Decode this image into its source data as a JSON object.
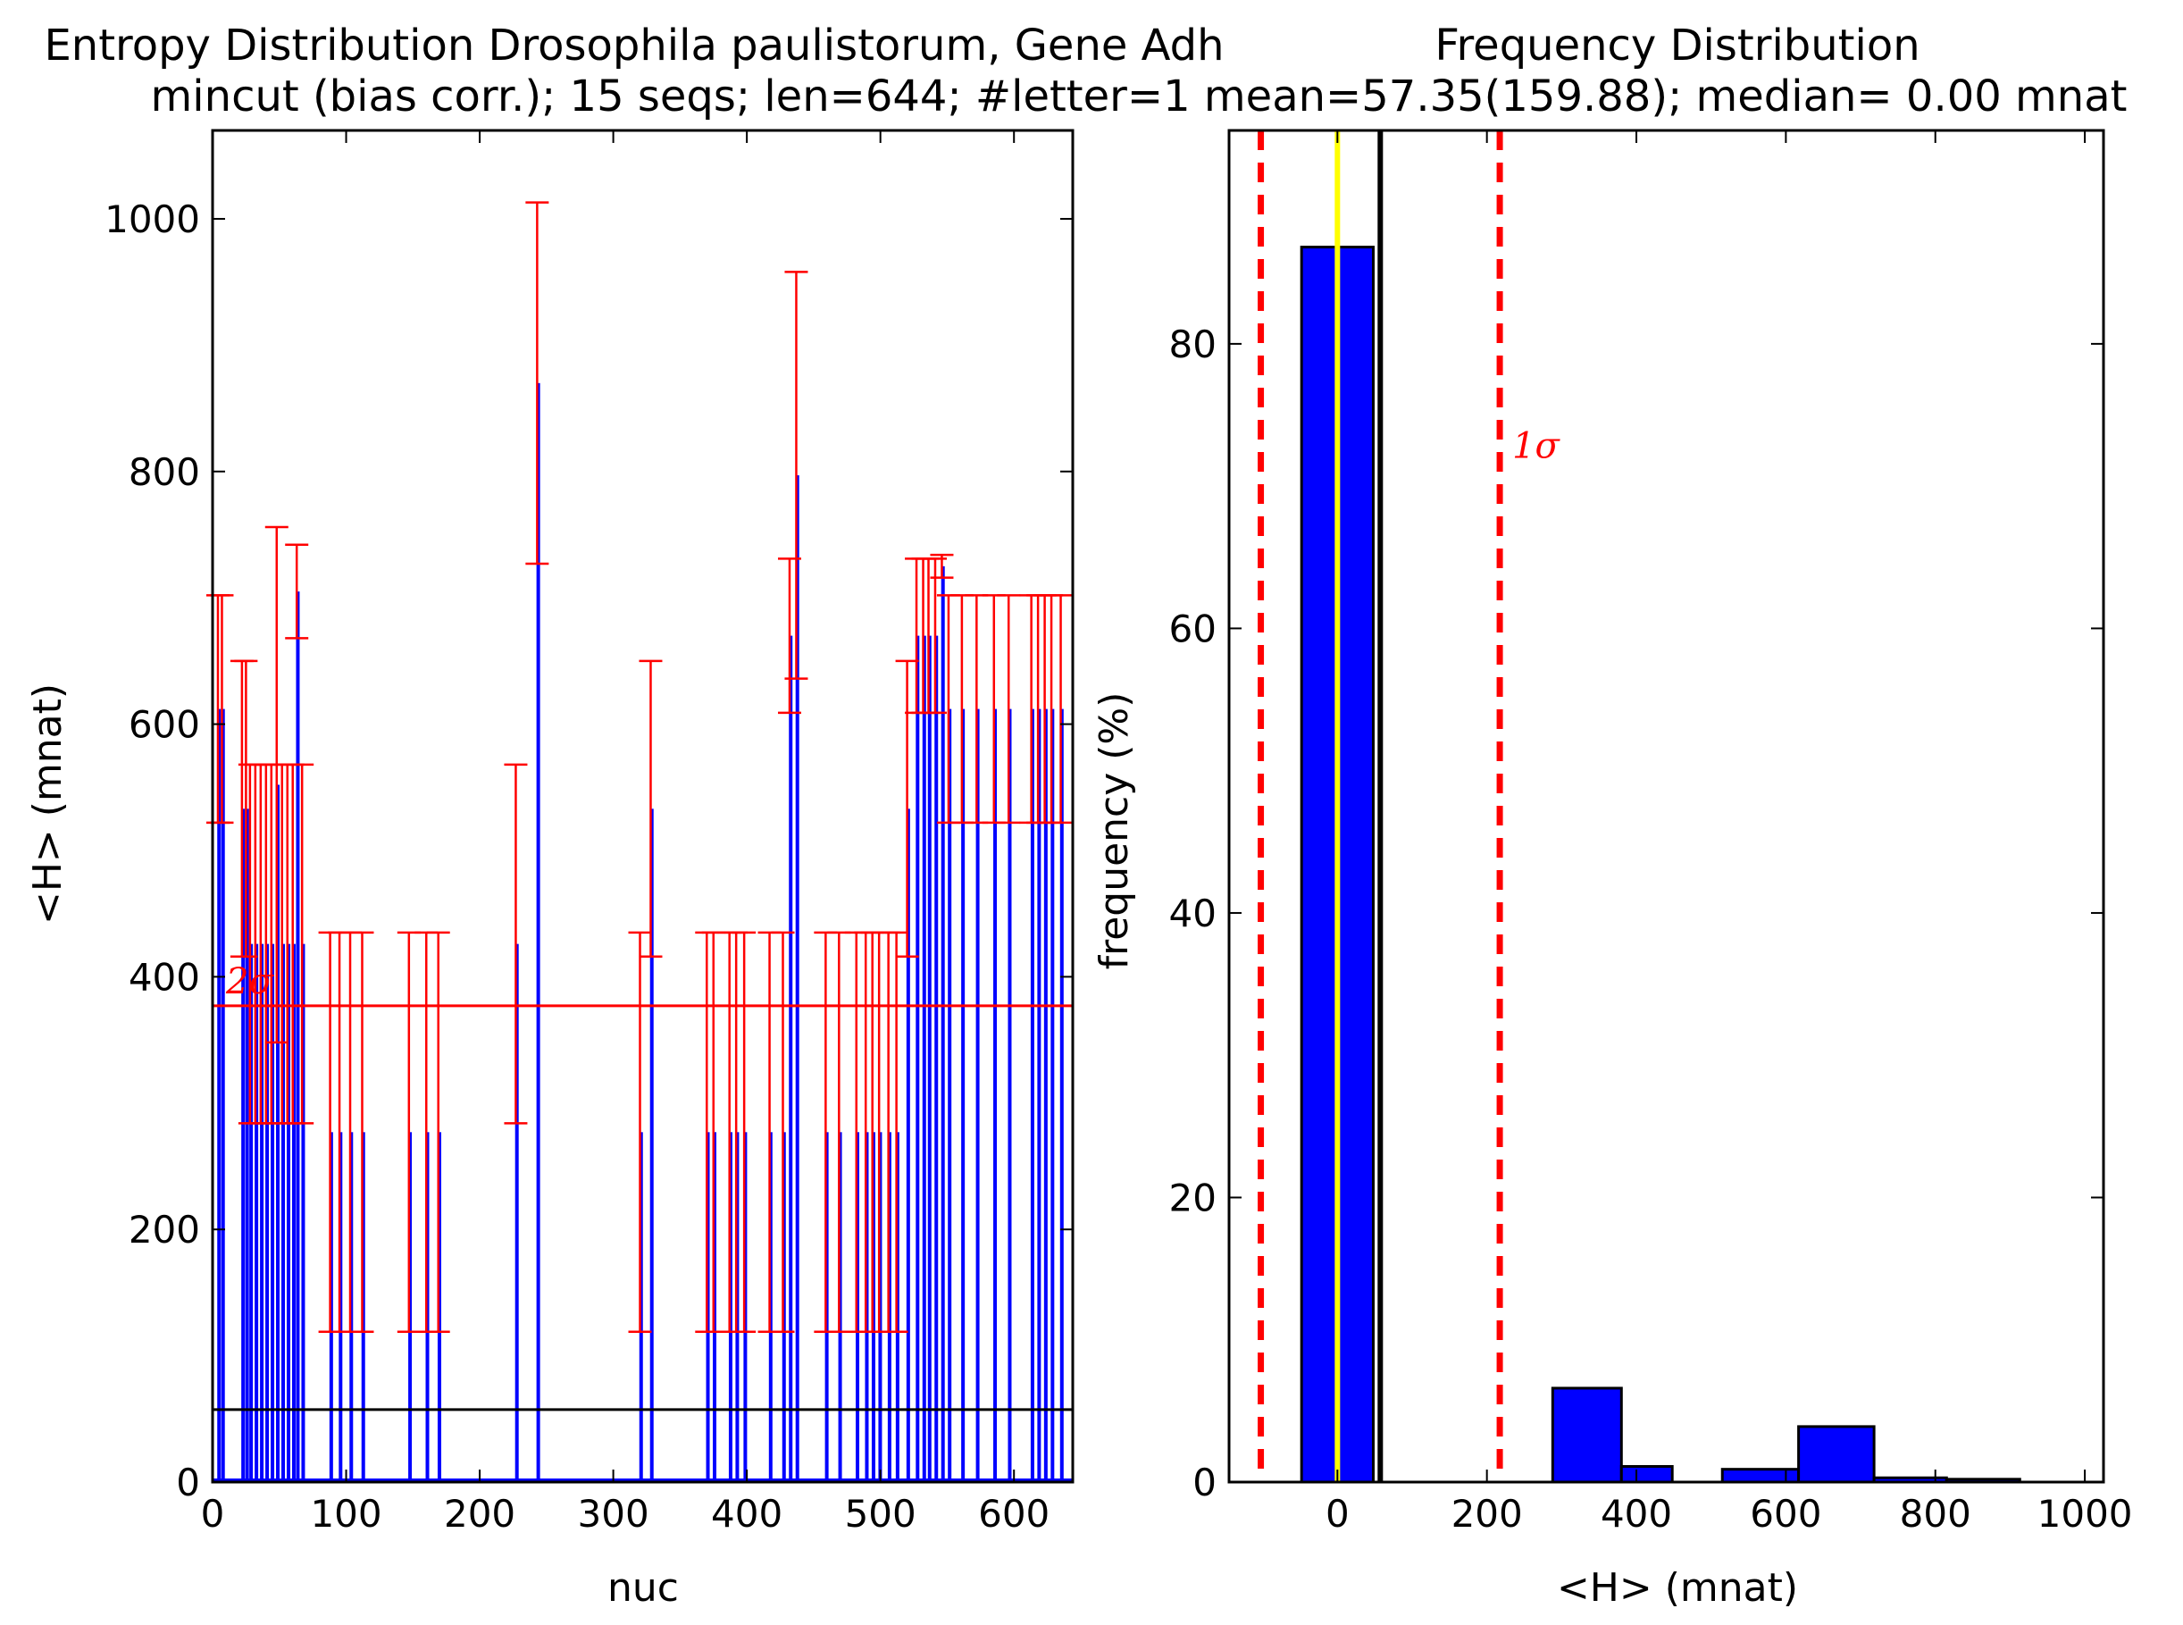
{
  "chart_data": [
    {
      "type": "bar",
      "title": "Entropy Distribution Drosophila paulistorum, Gene Adh",
      "subtitle": "mincut (bias corr.); 15 seqs; len=644; #letter=1 mean=57.35(159.88); median= 0.00 mnat",
      "xlabel": "nuc",
      "ylabel": "<H> (mnat)",
      "xlim": [
        0,
        644
      ],
      "ylim": [
        0,
        1070
      ],
      "xticks": [
        "0",
        "100",
        "200",
        "300",
        "400",
        "500",
        "600"
      ],
      "yticks": [
        "0",
        "200",
        "400",
        "600",
        "800",
        "1000"
      ],
      "mean_line": 57.35,
      "sigma_line": 377,
      "sigma_label": "2σ",
      "colors": {
        "bars": "#0000ff",
        "errorbars": "#ff0000",
        "mean": "#000000",
        "sigma": "#ff0000"
      },
      "series": [
        {
          "x": [
            4,
            7,
            22,
            25,
            28,
            32,
            36,
            40,
            44,
            48,
            52,
            56,
            60,
            63,
            67,
            88,
            95,
            103,
            112,
            147,
            160,
            169,
            227,
            243,
            320,
            328,
            370,
            375,
            387,
            392,
            398,
            417,
            427,
            432,
            437,
            459,
            469,
            482,
            489,
            494,
            499,
            506,
            512,
            520,
            527,
            532,
            536,
            541,
            546,
            551,
            561,
            572,
            585,
            596,
            613,
            618,
            623,
            628,
            635
          ],
          "values": [
            612,
            612,
            533,
            533,
            426,
            426,
            426,
            426,
            426,
            552,
            426,
            426,
            426,
            705,
            426,
            277,
            277,
            277,
            277,
            277,
            277,
            277,
            426,
            870,
            277,
            533,
            277,
            277,
            277,
            277,
            277,
            277,
            277,
            670,
            797,
            277,
            277,
            277,
            277,
            277,
            277,
            277,
            277,
            533,
            670,
            670,
            670,
            670,
            725,
            612,
            612,
            612,
            612,
            612,
            612,
            612,
            612,
            612,
            612
          ],
          "errors": [
            90,
            90,
            117,
            117,
            142,
            142,
            142,
            142,
            142,
            204,
            142,
            142,
            142,
            37,
            142,
            158,
            158,
            158,
            158,
            158,
            158,
            158,
            142,
            143,
            158,
            117,
            158,
            158,
            158,
            158,
            158,
            158,
            158,
            61,
            161,
            158,
            158,
            158,
            158,
            158,
            158,
            158,
            158,
            117,
            61,
            61,
            61,
            61,
            9,
            90,
            90,
            90,
            90,
            90,
            90,
            90,
            90,
            90,
            90
          ]
        }
      ]
    },
    {
      "type": "bar",
      "title": "Frequency Distribution",
      "xlabel": "<H> (mnat)",
      "ylabel": "frequency (%)",
      "xlim": [
        -145,
        1025
      ],
      "ylim": [
        0,
        95
      ],
      "xticks": [
        "0",
        "200",
        "400",
        "600",
        "800",
        "1000"
      ],
      "yticks": [
        "0",
        "20",
        "40",
        "60",
        "80"
      ],
      "mean_line": 57.35,
      "median_line": 0,
      "sigma_lines": [
        -102.5,
        217.2
      ],
      "sigma_label": "1σ",
      "colors": {
        "bars": "#0000ff",
        "mean": "#000000",
        "median": "#ffff00",
        "sigma": "#ff0000"
      },
      "bins": [
        {
          "x0": -48,
          "x1": 48,
          "value": 86.8
        },
        {
          "x0": 48,
          "x1": 96,
          "value": 0
        },
        {
          "x0": 96,
          "x1": 144,
          "value": 0
        },
        {
          "x0": 144,
          "x1": 192,
          "value": 0
        },
        {
          "x0": 192,
          "x1": 240,
          "value": 0
        },
        {
          "x0": 240,
          "x1": 288,
          "value": 0
        },
        {
          "x0": 288,
          "x1": 380,
          "value": 6.6
        },
        {
          "x0": 380,
          "x1": 448,
          "value": 1.1
        },
        {
          "x0": 448,
          "x1": 515,
          "value": 0
        },
        {
          "x0": 515,
          "x1": 617,
          "value": 0.9
        },
        {
          "x0": 617,
          "x1": 718,
          "value": 3.9
        },
        {
          "x0": 718,
          "x1": 815,
          "value": 0.3
        },
        {
          "x0": 815,
          "x1": 913,
          "value": 0.2
        }
      ]
    }
  ]
}
